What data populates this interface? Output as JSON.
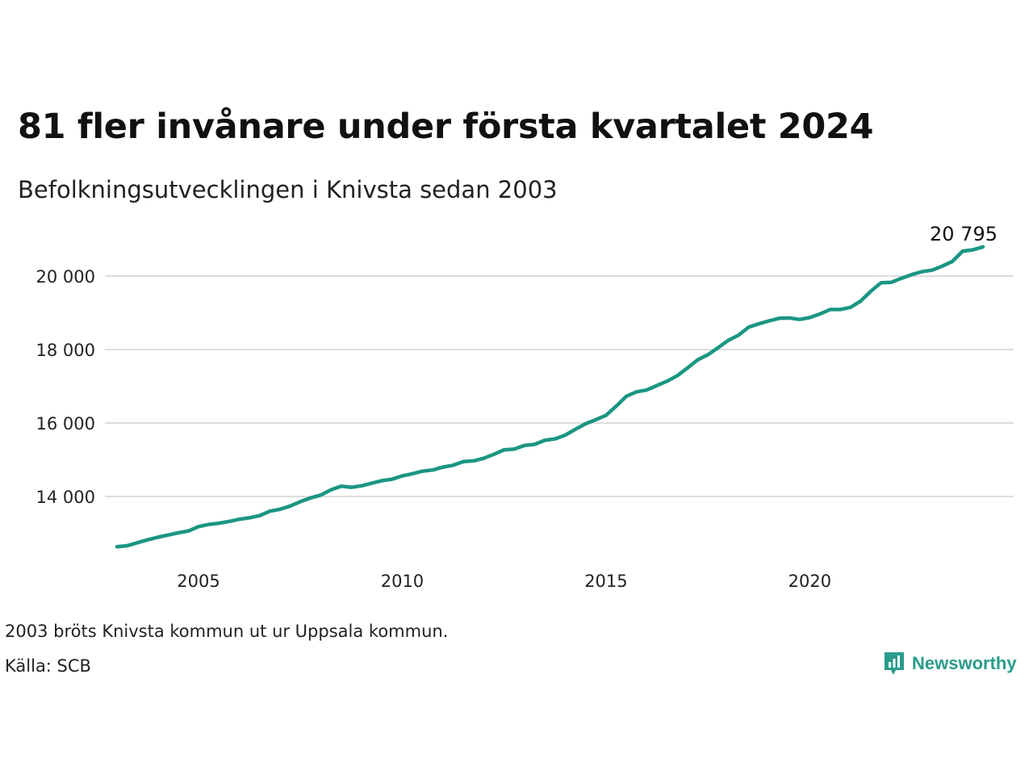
{
  "title": "81 fler invånare under första kvartalet 2024",
  "subtitle": "Befolkningsutvecklingen i Knivsta sedan 2003",
  "note": "2003 bröts Knivsta kommun ut ur Uppsala kommun.",
  "source": "Källa: SCB",
  "logo": {
    "text": "Newsworthy",
    "icon": "bar-chart-icon",
    "color": "#2a9c8c"
  },
  "colors": {
    "line": "#1a9682",
    "grid": "#dddddd"
  },
  "chart_data": {
    "type": "line",
    "xlabel": "",
    "ylabel": "",
    "xlim": [
      2003.0,
      2024.25
    ],
    "ylim": [
      12100,
      21400
    ],
    "x_ticks": [
      2005,
      2010,
      2015,
      2020
    ],
    "x_tick_labels": [
      "2005",
      "2010",
      "2015",
      "2020"
    ],
    "y_ticks": [
      14000,
      16000,
      18000,
      20000
    ],
    "y_tick_labels": [
      "14 000",
      "16 000",
      "18 000",
      "20 000"
    ],
    "grid": true,
    "end_label": "20 795",
    "series": [
      {
        "x": [
          2003.0,
          2003.25,
          2003.5,
          2003.75,
          2004.0,
          2004.25,
          2004.5,
          2004.75,
          2005.0,
          2005.25,
          2005.5,
          2005.75,
          2006.0,
          2006.25,
          2006.5,
          2006.75,
          2007.0,
          2007.25,
          2007.5,
          2007.75,
          2008.0,
          2008.25,
          2008.5,
          2008.75,
          2009.0,
          2009.25,
          2009.5,
          2009.75,
          2010.0,
          2010.25,
          2010.5,
          2010.75,
          2011.0,
          2011.25,
          2011.5,
          2011.75,
          2012.0,
          2012.25,
          2012.5,
          2012.75,
          2013.0,
          2013.25,
          2013.5,
          2013.75,
          2014.0,
          2014.25,
          2014.5,
          2014.75,
          2015.0,
          2015.25,
          2015.5,
          2015.75,
          2016.0,
          2016.25,
          2016.5,
          2016.75,
          2017.0,
          2017.25,
          2017.5,
          2017.75,
          2018.0,
          2018.25,
          2018.5,
          2018.75,
          2019.0,
          2019.25,
          2019.5,
          2019.75,
          2020.0,
          2020.25,
          2020.5,
          2020.75,
          2021.0,
          2021.25,
          2021.5,
          2021.75,
          2022.0,
          2022.25,
          2022.5,
          2022.75,
          2023.0,
          2023.25,
          2023.5,
          2023.75,
          2024.0,
          2024.25
        ],
        "values": [
          12630,
          12660,
          12740,
          12820,
          12890,
          12950,
          13010,
          13060,
          13180,
          13240,
          13270,
          13320,
          13380,
          13420,
          13480,
          13600,
          13650,
          13740,
          13860,
          13960,
          14040,
          14180,
          14280,
          14250,
          14290,
          14360,
          14430,
          14470,
          14560,
          14620,
          14690,
          14720,
          14800,
          14850,
          14950,
          14970,
          15040,
          15150,
          15270,
          15290,
          15390,
          15420,
          15530,
          15570,
          15670,
          15830,
          15980,
          16090,
          16210,
          16460,
          16730,
          16850,
          16900,
          17020,
          17140,
          17290,
          17500,
          17720,
          17860,
          18050,
          18250,
          18390,
          18610,
          18700,
          18780,
          18850,
          18860,
          18820,
          18870,
          18970,
          19090,
          19090,
          19150,
          19320,
          19590,
          19820,
          19830,
          19940,
          20040,
          20120,
          20160,
          20270,
          20400,
          20680,
          20714,
          20795
        ]
      }
    ]
  }
}
